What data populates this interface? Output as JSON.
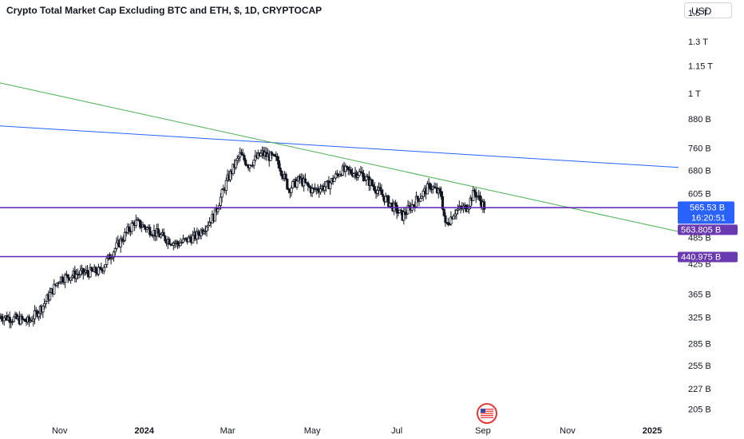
{
  "title": "Crypto Total Market Cap Excluding BTC and ETH, $, 1D, CRYPTOCAP",
  "currency_button": "USD",
  "colors": {
    "candle": "#131722",
    "green_trendline": "#4caf50",
    "blue_trendline": "#2962ff",
    "horizontal_levels": "#5b21b6",
    "current_price_tag": "#2962ff",
    "level_tag": "#6a3ab2",
    "flag_icon": "#e53935"
  },
  "icons": {
    "bottom_flag": "us-flag-icon"
  },
  "chart_data": {
    "type": "candlestick",
    "title": "Crypto Total Market Cap Excluding BTC and ETH, $, 1D, CRYPTOCAP",
    "y_scale": "log",
    "y_unit": "B",
    "y_ticks": [
      {
        "value": 1500,
        "label": "1.5 T"
      },
      {
        "value": 1300,
        "label": "1.3 T"
      },
      {
        "value": 1150,
        "label": "1.15 T"
      },
      {
        "value": 1000,
        "label": "1 T"
      },
      {
        "value": 880,
        "label": "880 B"
      },
      {
        "value": 760,
        "label": "760 B"
      },
      {
        "value": 680,
        "label": "680 B"
      },
      {
        "value": 605,
        "label": "605 B"
      },
      {
        "value": 485,
        "label": "485 B"
      },
      {
        "value": 425,
        "label": "425 B"
      },
      {
        "value": 365,
        "label": "365 B"
      },
      {
        "value": 325,
        "label": "325 B"
      },
      {
        "value": 285,
        "label": "285 B"
      },
      {
        "value": 255,
        "label": "255 B"
      },
      {
        "value": 227,
        "label": "227 B"
      },
      {
        "value": 205,
        "label": "205 B"
      }
    ],
    "x_ticks": [
      {
        "date": "2023-11-01",
        "label": "Nov",
        "bold": false
      },
      {
        "date": "2024-01-01",
        "label": "2024",
        "bold": true
      },
      {
        "date": "2024-03-01",
        "label": "Mar",
        "bold": false
      },
      {
        "date": "2024-05-01",
        "label": "May",
        "bold": false
      },
      {
        "date": "2024-07-01",
        "label": "Jul",
        "bold": false
      },
      {
        "date": "2024-09-01",
        "label": "Sep",
        "bold": false
      },
      {
        "date": "2024-11-01",
        "label": "Nov",
        "bold": false
      },
      {
        "date": "2025-01-01",
        "label": "2025",
        "bold": true
      }
    ],
    "x_range": [
      "2023-09-19",
      "2025-01-20"
    ],
    "y_range": [
      195,
      1600
    ],
    "price_path": [
      {
        "date": "2023-09-19",
        "value": 327
      },
      {
        "date": "2023-10-01",
        "value": 322
      },
      {
        "date": "2023-10-10",
        "value": 318
      },
      {
        "date": "2023-10-20",
        "value": 345
      },
      {
        "date": "2023-11-01",
        "value": 395
      },
      {
        "date": "2023-11-15",
        "value": 405
      },
      {
        "date": "2023-11-30",
        "value": 410
      },
      {
        "date": "2023-12-10",
        "value": 455
      },
      {
        "date": "2023-12-25",
        "value": 525
      },
      {
        "date": "2024-01-05",
        "value": 505
      },
      {
        "date": "2024-01-15",
        "value": 485
      },
      {
        "date": "2024-01-25",
        "value": 470
      },
      {
        "date": "2024-02-08",
        "value": 490
      },
      {
        "date": "2024-02-20",
        "value": 540
      },
      {
        "date": "2024-03-01",
        "value": 650
      },
      {
        "date": "2024-03-10",
        "value": 735
      },
      {
        "date": "2024-03-16",
        "value": 700
      },
      {
        "date": "2024-03-26",
        "value": 740
      },
      {
        "date": "2024-04-06",
        "value": 715
      },
      {
        "date": "2024-04-14",
        "value": 620
      },
      {
        "date": "2024-04-22",
        "value": 650
      },
      {
        "date": "2024-05-01",
        "value": 615
      },
      {
        "date": "2024-05-12",
        "value": 630
      },
      {
        "date": "2024-05-22",
        "value": 680
      },
      {
        "date": "2024-06-05",
        "value": 670
      },
      {
        "date": "2024-06-15",
        "value": 625
      },
      {
        "date": "2024-06-25",
        "value": 580
      },
      {
        "date": "2024-07-05",
        "value": 540
      },
      {
        "date": "2024-07-15",
        "value": 585
      },
      {
        "date": "2024-07-25",
        "value": 630
      },
      {
        "date": "2024-08-02",
        "value": 600
      },
      {
        "date": "2024-08-05",
        "value": 515
      },
      {
        "date": "2024-08-12",
        "value": 555
      },
      {
        "date": "2024-08-20",
        "value": 565
      },
      {
        "date": "2024-08-26",
        "value": 610
      },
      {
        "date": "2024-09-02",
        "value": 566
      }
    ],
    "annotations": {
      "horizontal_levels": [
        563.805,
        440.975
      ],
      "blue_trendline": [
        {
          "date": "2023-09-19",
          "value": 850
        },
        {
          "date": "2025-01-20",
          "value": 690
        }
      ],
      "green_trendline": [
        {
          "date": "2023-09-19",
          "value": 1055
        },
        {
          "date": "2025-01-20",
          "value": 500
        }
      ]
    },
    "price_tags": {
      "current": {
        "value": "565.53 B",
        "countdown": "16:20:51"
      },
      "levels": [
        "563.805 B",
        "440.975 B"
      ]
    }
  }
}
